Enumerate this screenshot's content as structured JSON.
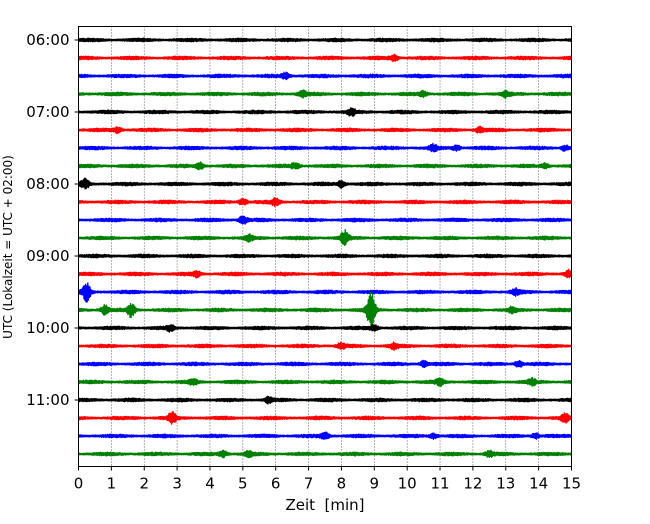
{
  "chart_data": {
    "type": "line",
    "subtype": "helicorder",
    "xlabel": "Zeit  [min]",
    "ylabel": "UTC (Lokalzeit = UTC + 02:00)",
    "xlim": [
      0,
      15
    ],
    "x_ticks": [
      "0",
      "1",
      "2",
      "3",
      "4",
      "5",
      "6",
      "7",
      "8",
      "9",
      "10",
      "11",
      "12",
      "13",
      "14",
      "15"
    ],
    "x_grid": "dotted vertical lines at every minute",
    "row_interval_minutes": 15,
    "y_tick_labels": [
      "06:00",
      "07:00",
      "08:00",
      "09:00",
      "10:00",
      "11:00"
    ],
    "trace_color_cycle": [
      "#000000",
      "#ff0000",
      "#0000ff",
      "#008000"
    ],
    "rows": [
      {
        "start": "06:00",
        "color": "#000000",
        "events": []
      },
      {
        "start": "06:15",
        "color": "#ff0000",
        "events": [
          {
            "t": 9.6,
            "amp": 0.35
          }
        ]
      },
      {
        "start": "06:30",
        "color": "#0000ff",
        "events": [
          {
            "t": 6.3,
            "amp": 0.3
          }
        ]
      },
      {
        "start": "06:45",
        "color": "#008000",
        "events": [
          {
            "t": 6.8,
            "amp": 0.35
          },
          {
            "t": 10.5,
            "amp": 0.25
          },
          {
            "t": 13.0,
            "amp": 0.25
          }
        ]
      },
      {
        "start": "07:00",
        "color": "#000000",
        "events": [
          {
            "t": 8.3,
            "amp": 0.35
          }
        ]
      },
      {
        "start": "07:15",
        "color": "#ff0000",
        "events": [
          {
            "t": 1.2,
            "amp": 0.3
          },
          {
            "t": 12.2,
            "amp": 0.3
          }
        ]
      },
      {
        "start": "07:30",
        "color": "#0000ff",
        "events": [
          {
            "t": 10.8,
            "amp": 0.35
          },
          {
            "t": 11.5,
            "amp": 0.3
          },
          {
            "t": 14.8,
            "amp": 0.3
          }
        ]
      },
      {
        "start": "07:45",
        "color": "#008000",
        "events": [
          {
            "t": 3.7,
            "amp": 0.35
          },
          {
            "t": 6.6,
            "amp": 0.3
          },
          {
            "t": 14.2,
            "amp": 0.25
          }
        ]
      },
      {
        "start": "08:00",
        "color": "#000000",
        "events": [
          {
            "t": 0.2,
            "amp": 0.5
          },
          {
            "t": 8.0,
            "amp": 0.35
          }
        ]
      },
      {
        "start": "08:15",
        "color": "#ff0000",
        "events": [
          {
            "t": 5.0,
            "amp": 0.35
          },
          {
            "t": 6.0,
            "amp": 0.4
          }
        ]
      },
      {
        "start": "08:30",
        "color": "#0000ff",
        "events": [
          {
            "t": 5.0,
            "amp": 0.45
          }
        ]
      },
      {
        "start": "08:45",
        "color": "#008000",
        "events": [
          {
            "t": 5.2,
            "amp": 0.3
          },
          {
            "t": 8.1,
            "amp": 0.75
          }
        ]
      },
      {
        "start": "09:00",
        "color": "#000000",
        "events": []
      },
      {
        "start": "09:15",
        "color": "#ff0000",
        "events": [
          {
            "t": 3.6,
            "amp": 0.3
          },
          {
            "t": 14.9,
            "amp": 0.35
          }
        ]
      },
      {
        "start": "09:30",
        "color": "#0000ff",
        "events": [
          {
            "t": 0.25,
            "amp": 1.0
          },
          {
            "t": 13.3,
            "amp": 0.3
          }
        ]
      },
      {
        "start": "09:45",
        "color": "#008000",
        "events": [
          {
            "t": 0.8,
            "amp": 0.5
          },
          {
            "t": 1.6,
            "amp": 0.7
          },
          {
            "t": 8.9,
            "amp": 2.1
          },
          {
            "t": 13.2,
            "amp": 0.3
          }
        ]
      },
      {
        "start": "10:00",
        "color": "#000000",
        "events": [
          {
            "t": 2.8,
            "amp": 0.3
          },
          {
            "t": 9.0,
            "amp": 0.3
          }
        ]
      },
      {
        "start": "10:15",
        "color": "#ff0000",
        "events": [
          {
            "t": 8.0,
            "amp": 0.3
          },
          {
            "t": 9.6,
            "amp": 0.3
          }
        ]
      },
      {
        "start": "10:30",
        "color": "#0000ff",
        "events": [
          {
            "t": 10.5,
            "amp": 0.3
          },
          {
            "t": 13.4,
            "amp": 0.4
          }
        ]
      },
      {
        "start": "10:45",
        "color": "#008000",
        "events": [
          {
            "t": 3.5,
            "amp": 0.3
          },
          {
            "t": 11.0,
            "amp": 0.35
          },
          {
            "t": 13.8,
            "amp": 0.3
          }
        ]
      },
      {
        "start": "11:00",
        "color": "#000000",
        "events": [
          {
            "t": 5.8,
            "amp": 0.3
          }
        ]
      },
      {
        "start": "11:15",
        "color": "#ff0000",
        "events": [
          {
            "t": 2.85,
            "amp": 0.55
          },
          {
            "t": 14.8,
            "amp": 0.4
          }
        ]
      },
      {
        "start": "11:30",
        "color": "#0000ff",
        "events": [
          {
            "t": 7.5,
            "amp": 0.35
          },
          {
            "t": 10.8,
            "amp": 0.3
          },
          {
            "t": 13.9,
            "amp": 0.3
          }
        ]
      },
      {
        "start": "11:45",
        "color": "#008000",
        "events": [
          {
            "t": 4.4,
            "amp": 0.35
          },
          {
            "t": 5.2,
            "amp": 0.3
          },
          {
            "t": 12.5,
            "amp": 0.3
          }
        ]
      }
    ]
  }
}
